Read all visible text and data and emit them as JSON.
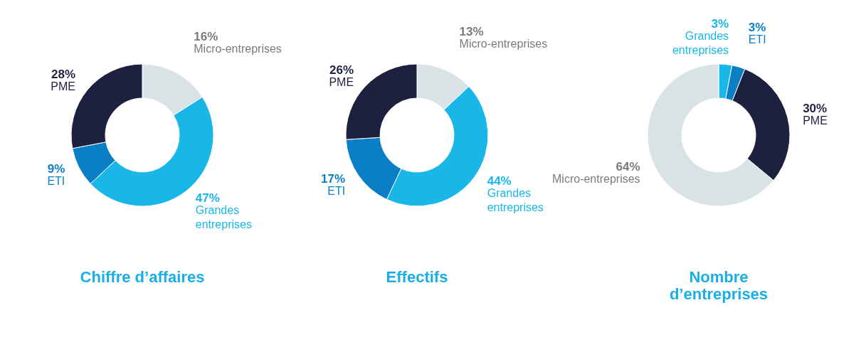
{
  "chart_data": [
    {
      "type": "donut",
      "title": "Chiffre d’affaires",
      "categories": [
        "Micro-entreprises",
        "Grandes entreprises",
        "ETI",
        "PME"
      ],
      "values": [
        16,
        47,
        9,
        28
      ],
      "value_labels": [
        "16%",
        "47%",
        "9%",
        "28%"
      ],
      "colors": [
        "#d9e3e6",
        "#18b7e8",
        "#0a7fc6",
        "#1e2040"
      ],
      "legend": false
    },
    {
      "type": "donut",
      "title": "Effectifs",
      "categories": [
        "Micro-entreprises",
        "Grandes entreprises",
        "ETI",
        "PME"
      ],
      "values": [
        13,
        44,
        17,
        26
      ],
      "value_labels": [
        "13%",
        "44%",
        "17%",
        "26%"
      ],
      "colors": [
        "#d9e3e6",
        "#18b7e8",
        "#0a7fc6",
        "#1e2040"
      ],
      "legend": false
    },
    {
      "type": "donut",
      "title": "Nombre\nd’entreprises",
      "categories": [
        "Grandes entreprises",
        "ETI",
        "PME",
        "Micro-entreprises"
      ],
      "values": [
        3,
        3,
        30,
        64
      ],
      "value_labels": [
        "3%",
        "3%",
        "30%",
        "64%"
      ],
      "colors": [
        "#18b7e8",
        "#0a7fc6",
        "#1e2040",
        "#d9e3e6"
      ],
      "legend": false
    }
  ]
}
